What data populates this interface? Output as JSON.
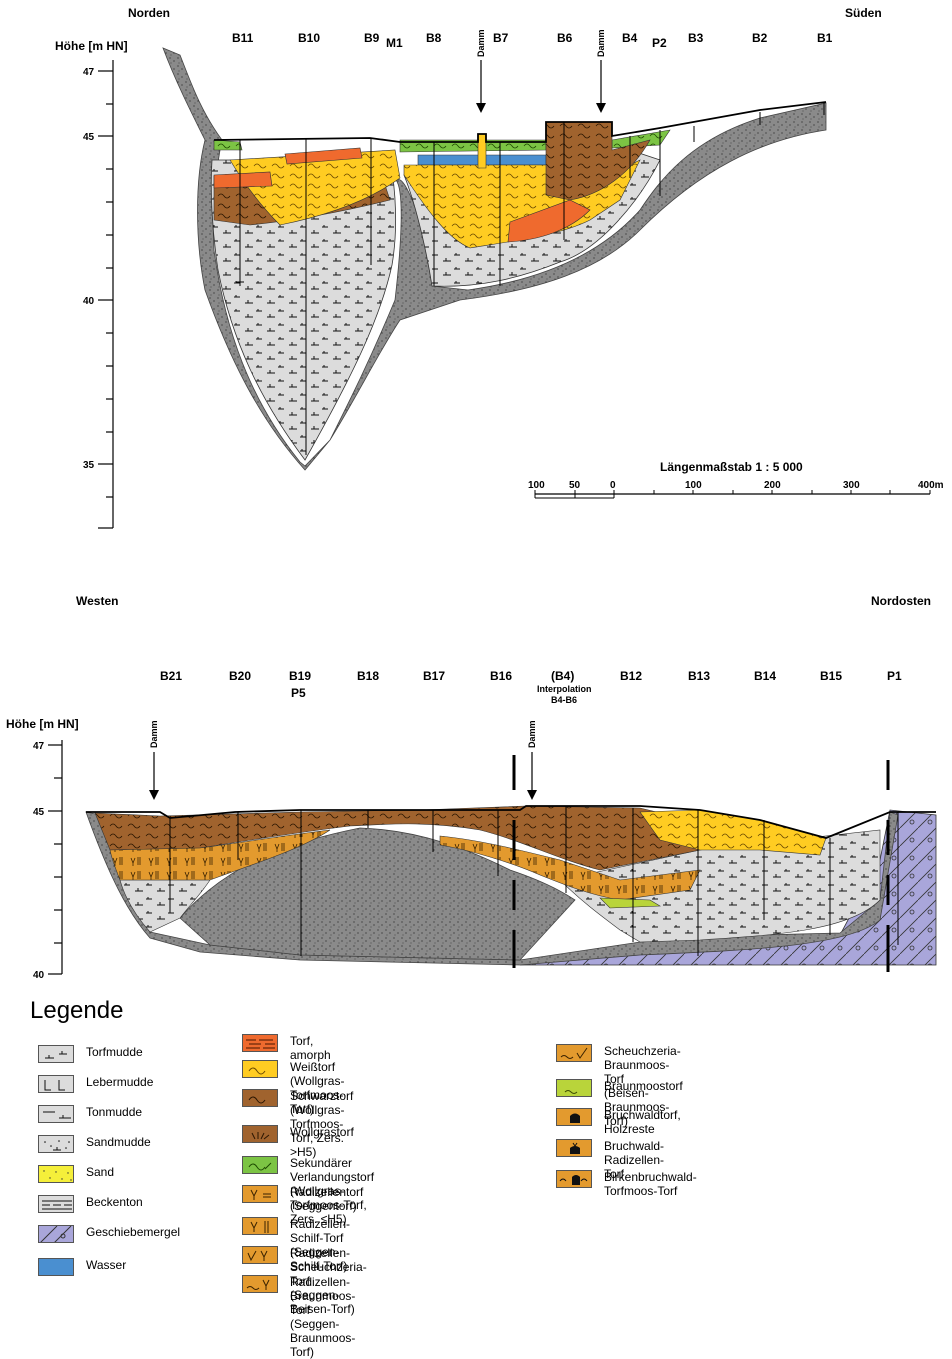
{
  "section1": {
    "dir_left": "Norden",
    "dir_right": "Süden",
    "axis_label": "Höhe [m HN]",
    "ticks": [
      "47",
      "45",
      "40",
      "35"
    ],
    "boreholes": [
      "B11",
      "B10",
      "B9",
      "M1",
      "B8",
      "B7",
      "B6",
      "B4",
      "P2",
      "B3",
      "B2",
      "B1"
    ],
    "damm": [
      "Damm",
      "Damm"
    ],
    "scale_title": "Längenmaßstab 1 : 5 000",
    "scale_ticks": [
      "100",
      "50",
      "0",
      "100",
      "200",
      "300",
      "400m"
    ]
  },
  "section2": {
    "dir_left": "Westen",
    "dir_right": "Nordosten",
    "axis_label": "Höhe [m HN]",
    "ticks": [
      "47",
      "45",
      "40"
    ],
    "boreholes": [
      "B21",
      "B20",
      "B19",
      "P5",
      "B18",
      "B17",
      "B16",
      "(B4)",
      "Interpolation",
      "B4-B6",
      "B12",
      "B13",
      "B14",
      "B15",
      "P1"
    ],
    "damm": [
      "Damm",
      "Damm"
    ]
  },
  "legend": {
    "title": "Legende",
    "col1": [
      {
        "label": "Torfmudde",
        "color": "#dcdcdc",
        "pattern": "torfmudde"
      },
      {
        "label": "Lebermudde",
        "color": "#dcdcdc",
        "pattern": "lebermudde"
      },
      {
        "label": "Tonmudde",
        "color": "#dcdcdc",
        "pattern": "tonmudde"
      },
      {
        "label": "Sandmudde",
        "color": "#dcdcdc",
        "pattern": "sandmudde"
      },
      {
        "label": "Sand",
        "color": "#f5ef3a",
        "pattern": "sand"
      },
      {
        "label": "Beckenton",
        "color": "#dcdcdc",
        "pattern": "beckenton"
      },
      {
        "label": "Geschiebemergel",
        "color": "#a9a6da",
        "pattern": "geschiebe"
      },
      {
        "label": "Wasser",
        "color": "#4a8fd0",
        "pattern": "none"
      }
    ],
    "col2": [
      {
        "line1": "Torf, amorph",
        "line2": "",
        "color": "#ef6a2e",
        "pattern": "amorph"
      },
      {
        "line1": "Weißtorf",
        "line2": "(Wollgras-Torfmoos-Torf)",
        "color": "#ffcc22",
        "pattern": "wave"
      },
      {
        "line1": "Schwarztorf",
        "line2": "(Wollgras-Torfmoos-Torf, Zers. >H5)",
        "color": "#a0632e",
        "pattern": "wave"
      },
      {
        "line1": "Wollgrastorf",
        "line2": "",
        "color": "#a0632e",
        "pattern": "grass"
      },
      {
        "line1": "Sekundärer Verlandungstorf",
        "line2": "(Wollgras-Torfmoos-Torf, Zers. ≤H5)",
        "color": "#7cc444",
        "pattern": "wave"
      },
      {
        "line1": "Radizellentorf",
        "line2": "(Seggentorf)",
        "color": "#e39a2e",
        "pattern": "radiz"
      },
      {
        "line1": "Radizellen-Schilf-Torf",
        "line2": "(Seggen-Schilf-Torf)",
        "color": "#e39a2e",
        "pattern": "schilf"
      },
      {
        "line1": "Radizellen-Scheuchzeria-Torf",
        "line2": "(Seggen-Beisen-Torf)",
        "color": "#e39a2e",
        "pattern": "scheuch"
      },
      {
        "line1": "Radizellen-Braunmoos-Torf",
        "line2": "(Seggen-Braunmoos-Torf)",
        "color": "#e39a2e",
        "pattern": "braunrad"
      }
    ],
    "col3": [
      {
        "line1": "Scheuchzeria-Braunmoos-Torf",
        "line2": "(Beisen-Braunmoos-Torf)",
        "color": "#e39a2e",
        "pattern": "scheuch2"
      },
      {
        "line1": "Braunmoostorf",
        "line2": "",
        "color": "#b9d43a",
        "pattern": "moss"
      },
      {
        "line1": "Bruchwaldtorf, Holzreste",
        "line2": "",
        "color": "#e39a2e",
        "pattern": "holz"
      },
      {
        "line1": "Bruchwald-Radizellen-Torf",
        "line2": "",
        "color": "#e39a2e",
        "pattern": "bruchrad"
      },
      {
        "line1": "Birkenbruchwald-",
        "line2": "Torfmoos-Torf",
        "color": "#e39a2e",
        "pattern": "birke"
      }
    ]
  }
}
